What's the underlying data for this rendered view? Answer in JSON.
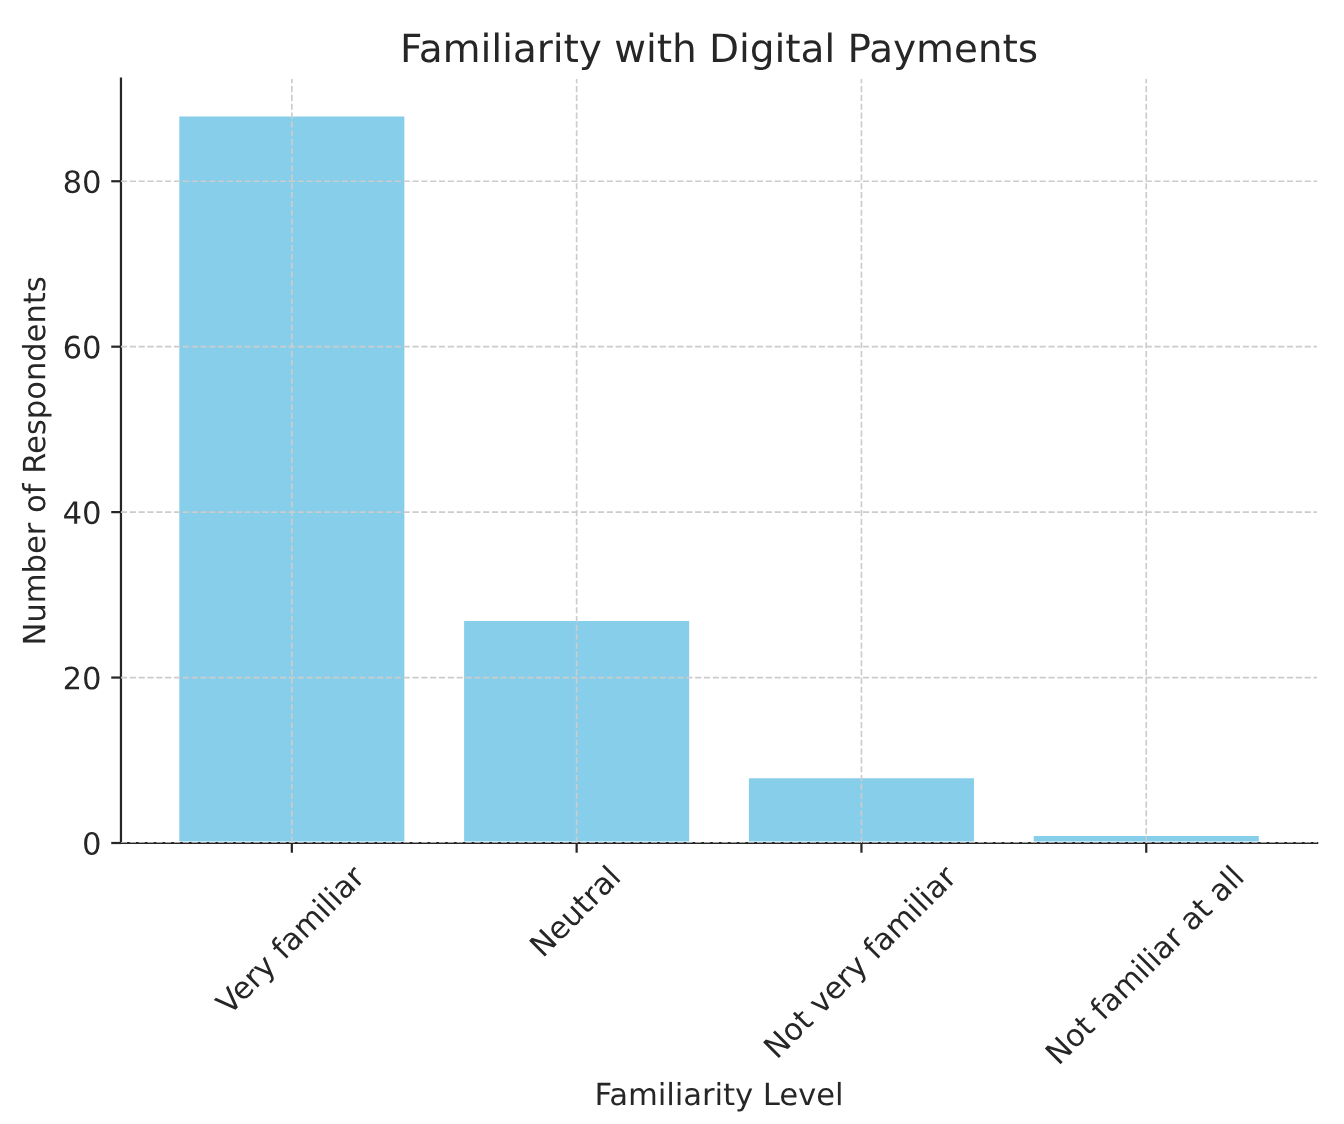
{
  "chart_data": {
    "type": "bar",
    "title": "Familiarity with Digital Payments",
    "xlabel": "Familiarity Level",
    "ylabel": "Number of Respondents",
    "categories": [
      "Very familiar",
      "Neutral",
      "Not very familiar",
      "Not familiar at all"
    ],
    "values": [
      88,
      27,
      8,
      1
    ],
    "color": "#87ceeb",
    "ylim": [
      0,
      92.4
    ],
    "yticks": [
      0,
      20,
      40,
      60,
      80
    ],
    "grid": true
  }
}
